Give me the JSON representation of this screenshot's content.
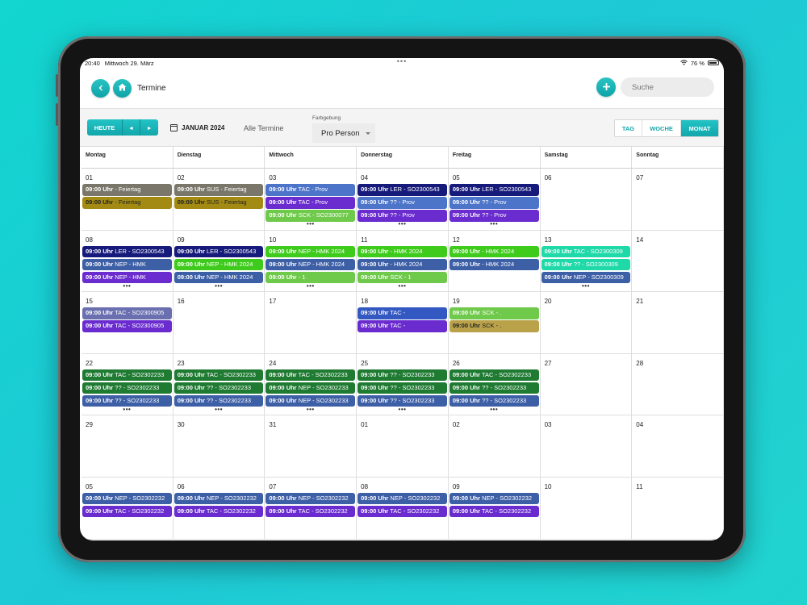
{
  "status": {
    "time": "20:40",
    "date": "Mittwoch 29. März",
    "center": "•••",
    "battery": "76 %"
  },
  "header": {
    "title": "Termine",
    "back_icon": "chevron-left-icon",
    "home_icon": "home-icon",
    "add_icon": "plus-icon",
    "search_placeholder": "Suche"
  },
  "toolbar": {
    "today_label": "HEUTE",
    "prev_label": "◂",
    "next_label": "▸",
    "month_label": "JANUAR 2024",
    "filter_label": "Alle Termine",
    "farb_label": "Farbgebung",
    "farb_value": "Pro Person",
    "views": [
      "TAG",
      "WOCHE",
      "MONAT"
    ],
    "active_view": "MONAT"
  },
  "weekdays": [
    "Montag",
    "Dienstag",
    "Mittwoch",
    "Donnerstag",
    "Freitag",
    "Samstag",
    "Sonntag"
  ],
  "colors": {
    "accent": "#17a6aa"
  },
  "weeks": [
    [
      {
        "day": "01",
        "events": [
          {
            "time": "09:00 Uhr",
            "text": " - Feiertag",
            "color": "#7a776a"
          },
          {
            "time": "09:00 Uhr",
            "text": " - Feiertag",
            "color": "#a38b13",
            "dark": true
          }
        ]
      },
      {
        "day": "02",
        "events": [
          {
            "time": "09:00 Uhr",
            "text": " SUS - Feiertag",
            "color": "#7a776a"
          },
          {
            "time": "09:00 Uhr",
            "text": " SUS - Feiertag",
            "color": "#a38b13",
            "dark": true
          }
        ]
      },
      {
        "day": "03",
        "events": [
          {
            "time": "09:00 Uhr",
            "text": " TAC - Prov",
            "color": "#4c74c9"
          },
          {
            "time": "09:00 Uhr",
            "text": " TAC - Prov",
            "color": "#6a2ccf"
          },
          {
            "time": "09:00 Uhr",
            "text": " SCK - SO2300077",
            "color": "#6fc94a"
          }
        ],
        "more": "•••"
      },
      {
        "day": "04",
        "events": [
          {
            "time": "09:00 Uhr",
            "text": " LER - SO2300543",
            "color": "#161a7a"
          },
          {
            "time": "09:00 Uhr",
            "text": " ?? - Prov",
            "color": "#4c74c9"
          },
          {
            "time": "09:00 Uhr",
            "text": " ?? - Prov",
            "color": "#6a2ccf"
          }
        ],
        "more": "•••"
      },
      {
        "day": "05",
        "events": [
          {
            "time": "09:00 Uhr",
            "text": " LER - SO2300543",
            "color": "#161a7a"
          },
          {
            "time": "09:00 Uhr",
            "text": " ?? - Prov",
            "color": "#4c74c9"
          },
          {
            "time": "09:00 Uhr",
            "text": " ?? - Prov",
            "color": "#6a2ccf"
          }
        ],
        "more": "•••"
      },
      {
        "day": "06",
        "events": []
      },
      {
        "day": "07",
        "events": []
      }
    ],
    [
      {
        "day": "08",
        "events": [
          {
            "time": "09:00 Uhr",
            "text": " LER - SO2300543",
            "color": "#161a7a"
          },
          {
            "time": "09:00 Uhr",
            "text": " NEP - HMK",
            "color": "#3d5fa6"
          },
          {
            "time": "09:00 Uhr",
            "text": " NEP - HMK",
            "color": "#6a2ccf"
          }
        ],
        "more": "•••"
      },
      {
        "day": "09",
        "events": [
          {
            "time": "09:00 Uhr",
            "text": " LER - SO2300543",
            "color": "#161a7a"
          },
          {
            "time": "09:00 Uhr",
            "text": " NEP - HMK 2024",
            "color": "#3fcb1c"
          },
          {
            "time": "09:00 Uhr",
            "text": " NEP - HMK 2024",
            "color": "#3d5fa6"
          }
        ],
        "more": "•••"
      },
      {
        "day": "10",
        "events": [
          {
            "time": "09:00 Uhr",
            "text": " NEP - HMK 2024",
            "color": "#3fcb1c"
          },
          {
            "time": "09:00 Uhr",
            "text": " NEP - HMK 2024",
            "color": "#3d5fa6"
          },
          {
            "time": "09:00 Uhr",
            "text": " - 1",
            "color": "#6fc94a"
          }
        ],
        "more": "•••"
      },
      {
        "day": "11",
        "events": [
          {
            "time": "09:00 Uhr",
            "text": " - HMK 2024",
            "color": "#3fcb1c"
          },
          {
            "time": "09:00 Uhr",
            "text": " - HMK 2024",
            "color": "#3d5fa6"
          },
          {
            "time": "09:00 Uhr",
            "text": " SCK - 1",
            "color": "#6fc94a"
          }
        ],
        "more": "•••"
      },
      {
        "day": "12",
        "events": [
          {
            "time": "09:00 Uhr",
            "text": " - HMK 2024",
            "color": "#3fcb1c"
          },
          {
            "time": "09:00 Uhr",
            "text": " - HMK 2024",
            "color": "#3d5fa6"
          }
        ]
      },
      {
        "day": "13",
        "events": [
          {
            "time": "09:00 Uhr",
            "text": " TAC - SO2300309",
            "color": "#1fd9a8"
          },
          {
            "time": "09:00 Uhr",
            "text": " ?? - SO2300309",
            "color": "#1fd9a8"
          },
          {
            "time": "09:00 Uhr",
            "text": " NEP - SO2300309",
            "color": "#3d5fa6"
          }
        ],
        "more": "•••"
      },
      {
        "day": "14",
        "events": []
      }
    ],
    [
      {
        "day": "15",
        "events": [
          {
            "time": "09:00 Uhr",
            "text": " TAC - SO2300905",
            "color": "#6a6fb0"
          },
          {
            "time": "09:00 Uhr",
            "text": " TAC - SO2300905",
            "color": "#6a2ccf"
          }
        ]
      },
      {
        "day": "16",
        "events": []
      },
      {
        "day": "17",
        "events": []
      },
      {
        "day": "18",
        "events": [
          {
            "time": "09:00 Uhr",
            "text": " TAC -",
            "color": "#3458c2"
          },
          {
            "time": "09:00 Uhr",
            "text": " TAC -",
            "color": "#6a2ccf"
          }
        ]
      },
      {
        "day": "19",
        "events": [
          {
            "time": "09:00 Uhr",
            "text": " SCK - .",
            "color": "#6fc94a"
          },
          {
            "time": "09:00 Uhr",
            "text": " SCK - .",
            "color": "#b9a24a",
            "dark": true
          }
        ]
      },
      {
        "day": "20",
        "events": []
      },
      {
        "day": "21",
        "events": []
      }
    ],
    [
      {
        "day": "22",
        "events": [
          {
            "time": "09:00 Uhr",
            "text": " TAC - SO2302233",
            "color": "#1f7a32"
          },
          {
            "time": "09:00 Uhr",
            "text": " ?? - SO2302233",
            "color": "#1f7a32"
          },
          {
            "time": "09:00 Uhr",
            "text": " ?? - SO2302233",
            "color": "#3d5fa6"
          }
        ],
        "more": "•••"
      },
      {
        "day": "23",
        "events": [
          {
            "time": "09:00 Uhr",
            "text": " TAC - SO2302233",
            "color": "#1f7a32"
          },
          {
            "time": "09:00 Uhr",
            "text": " ?? - SO2302233",
            "color": "#1f7a32"
          },
          {
            "time": "09:00 Uhr",
            "text": " ?? - SO2302233",
            "color": "#3d5fa6"
          }
        ],
        "more": "•••"
      },
      {
        "day": "24",
        "events": [
          {
            "time": "09:00 Uhr",
            "text": " TAC - SO2302233",
            "color": "#1f7a32"
          },
          {
            "time": "09:00 Uhr",
            "text": " NEP - SO2302233",
            "color": "#1f7a32"
          },
          {
            "time": "09:00 Uhr",
            "text": " NEP - SO2302233",
            "color": "#3d5fa6"
          }
        ],
        "more": "•••"
      },
      {
        "day": "25",
        "events": [
          {
            "time": "09:00 Uhr",
            "text": " ?? - SO2302233",
            "color": "#1f7a32"
          },
          {
            "time": "09:00 Uhr",
            "text": " ?? - SO2302233",
            "color": "#1f7a32"
          },
          {
            "time": "09:00 Uhr",
            "text": " ?? - SO2302233",
            "color": "#3d5fa6"
          }
        ],
        "more": "•••"
      },
      {
        "day": "26",
        "events": [
          {
            "time": "09:00 Uhr",
            "text": " TAC - SO2302233",
            "color": "#1f7a32"
          },
          {
            "time": "09:00 Uhr",
            "text": " ?? - SO2302233",
            "color": "#1f7a32"
          },
          {
            "time": "09:00 Uhr",
            "text": " ?? - SO2302233",
            "color": "#3d5fa6"
          }
        ],
        "more": "•••"
      },
      {
        "day": "27",
        "events": []
      },
      {
        "day": "28",
        "events": []
      }
    ],
    [
      {
        "day": "29",
        "events": []
      },
      {
        "day": "30",
        "events": []
      },
      {
        "day": "31",
        "events": []
      },
      {
        "day": "01",
        "events": []
      },
      {
        "day": "02",
        "events": []
      },
      {
        "day": "03",
        "events": []
      },
      {
        "day": "04",
        "events": []
      }
    ],
    [
      {
        "day": "05",
        "events": [
          {
            "time": "09:00 Uhr",
            "text": " NEP - SO2302232",
            "color": "#3d5fa6"
          },
          {
            "time": "09:00 Uhr",
            "text": " TAC - SO2302232",
            "color": "#6a2ccf"
          }
        ]
      },
      {
        "day": "06",
        "events": [
          {
            "time": "09:00 Uhr",
            "text": " NEP - SO2302232",
            "color": "#3d5fa6"
          },
          {
            "time": "09:00 Uhr",
            "text": " TAC - SO2302232",
            "color": "#6a2ccf"
          }
        ]
      },
      {
        "day": "07",
        "events": [
          {
            "time": "09:00 Uhr",
            "text": " NEP - SO2302232",
            "color": "#3d5fa6"
          },
          {
            "time": "09:00 Uhr",
            "text": " TAC - SO2302232",
            "color": "#6a2ccf"
          }
        ]
      },
      {
        "day": "08",
        "events": [
          {
            "time": "09:00 Uhr",
            "text": " NEP - SO2302232",
            "color": "#3d5fa6"
          },
          {
            "time": "09:00 Uhr",
            "text": " TAC - SO2302232",
            "color": "#6a2ccf"
          }
        ]
      },
      {
        "day": "09",
        "events": [
          {
            "time": "09:00 Uhr",
            "text": " NEP - SO2302232",
            "color": "#3d5fa6"
          },
          {
            "time": "09:00 Uhr",
            "text": " TAC - SO2302232",
            "color": "#6a2ccf"
          }
        ]
      },
      {
        "day": "10",
        "events": []
      },
      {
        "day": "11",
        "events": []
      }
    ]
  ]
}
